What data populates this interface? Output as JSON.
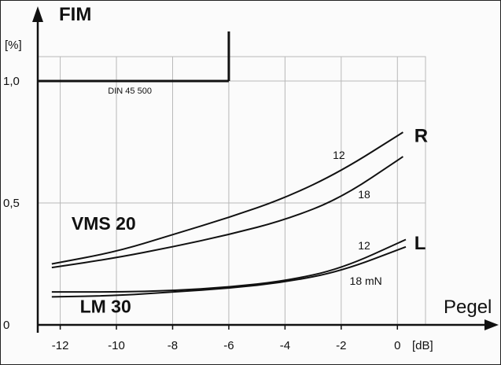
{
  "chart_data": {
    "type": "line",
    "title": "FIM",
    "ylabel": "FIM",
    "y_unit": "[%]",
    "xlabel": "Pegel",
    "x_unit": "[dB]",
    "xlim": [
      -12,
      1
    ],
    "ylim": [
      0,
      1.1
    ],
    "x_ticks": [
      {
        "value": -12,
        "label": "-12"
      },
      {
        "value": -10,
        "label": "-10"
      },
      {
        "value": -8,
        "label": "-8"
      },
      {
        "value": -6,
        "label": "-6"
      },
      {
        "value": -4,
        "label": "-4"
      },
      {
        "value": -2,
        "label": "-2"
      },
      {
        "value": 0,
        "label": "0"
      }
    ],
    "y_ticks": [
      {
        "value": 0,
        "label": "0"
      },
      {
        "value": 0.5,
        "label": "0,5"
      },
      {
        "value": 1.0,
        "label": "1,0"
      }
    ],
    "grid": true,
    "reference": {
      "label": "DIN 45 500",
      "y": 1.0,
      "x_end": -6
    },
    "groups": [
      {
        "name": "VMS 20",
        "label_x": -11.6,
        "label_y": 0.39
      },
      {
        "name": "LM 30",
        "label_x": -11.3,
        "label_y": 0.05
      }
    ],
    "side_labels": [
      {
        "text": "R",
        "x": 0.6,
        "y": 0.75
      },
      {
        "text": "L",
        "x": 0.6,
        "y": 0.31
      }
    ],
    "series": [
      {
        "name": "12",
        "x": [
          -12.3,
          -10,
          -8,
          -6,
          -4,
          -2,
          0.2
        ],
        "y": [
          0.25,
          0.3,
          0.37,
          0.44,
          0.52,
          0.63,
          0.79
        ],
        "label_x": -2.3,
        "label_y": 0.68
      },
      {
        "name": "18",
        "x": [
          -12.3,
          -10,
          -8,
          -6,
          -4,
          -2,
          0.2
        ],
        "y": [
          0.235,
          0.275,
          0.32,
          0.37,
          0.43,
          0.52,
          0.69
        ],
        "label_x": -1.4,
        "label_y": 0.52
      },
      {
        "name": "12",
        "x": [
          -12.3,
          -10,
          -8,
          -6,
          -4,
          -2,
          0.3
        ],
        "y": [
          0.135,
          0.135,
          0.14,
          0.155,
          0.18,
          0.23,
          0.35
        ],
        "label_x": -1.4,
        "label_y": 0.31
      },
      {
        "name": "18 mN",
        "x": [
          -12.3,
          -10,
          -8,
          -6,
          -4,
          -2,
          0.3
        ],
        "y": [
          0.115,
          0.12,
          0.135,
          0.15,
          0.175,
          0.22,
          0.32
        ],
        "label_x": -1.7,
        "label_y": 0.165
      }
    ]
  }
}
